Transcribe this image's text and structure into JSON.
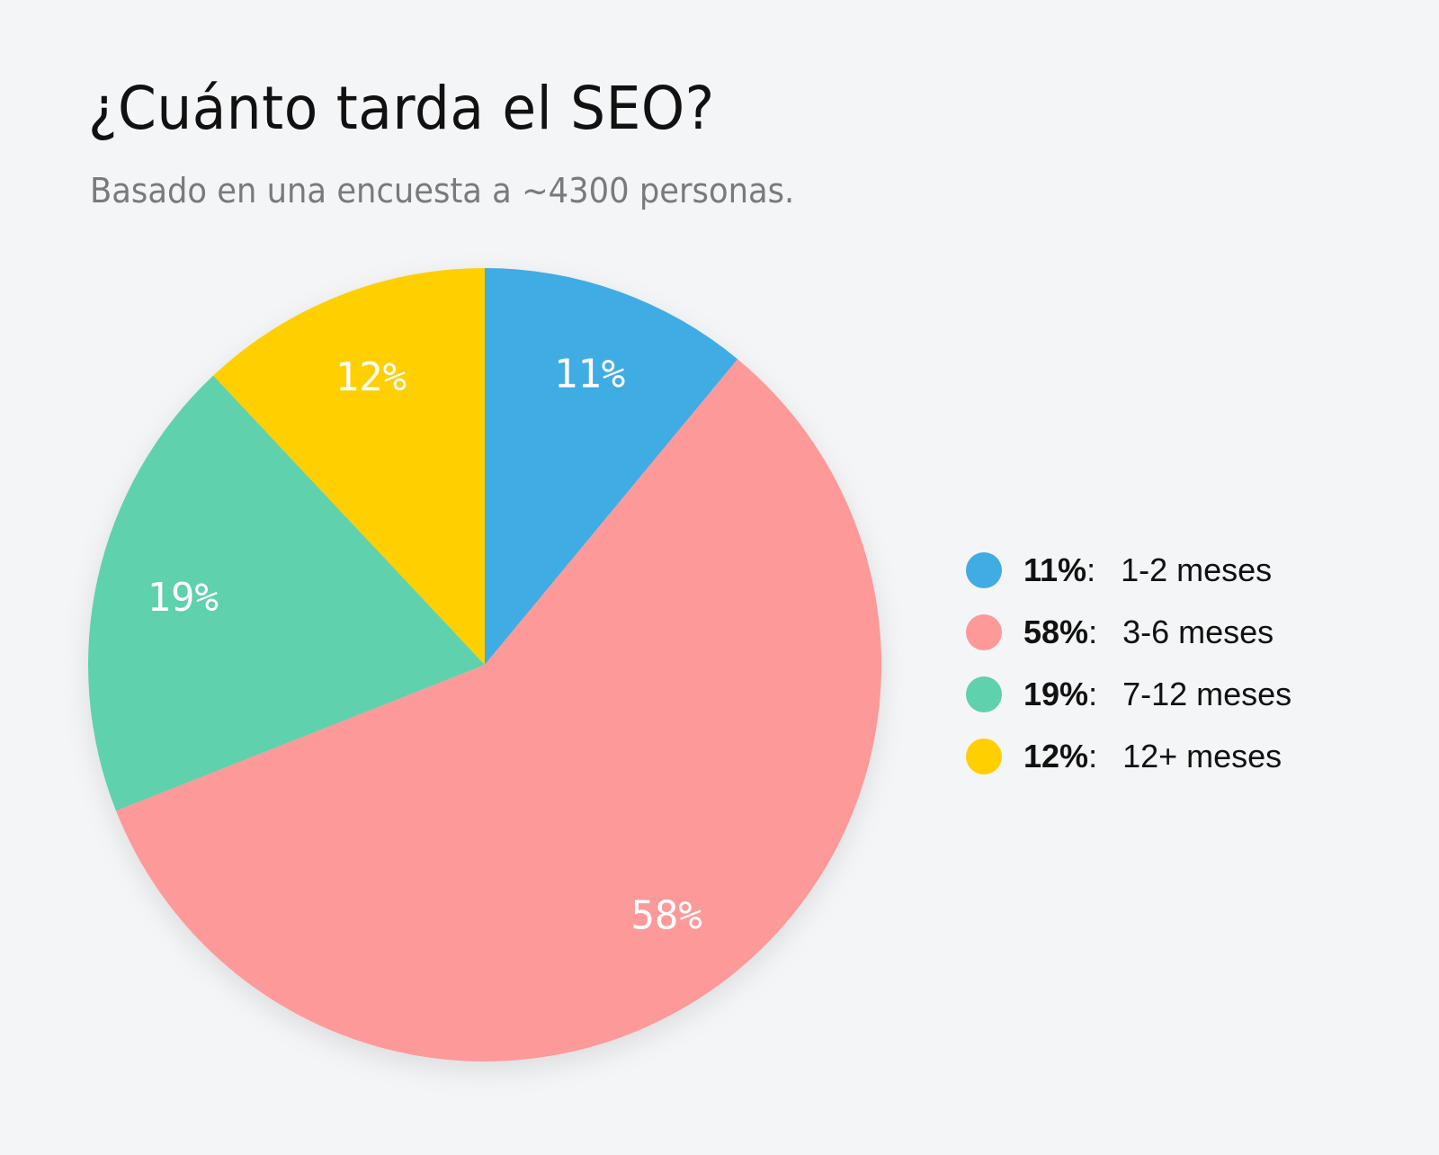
{
  "header": {
    "title": "¿Cuánto tarda el SEO?",
    "subtitle": "Basado en una encuesta a ~4300 personas."
  },
  "legend": {
    "items": [
      {
        "pct": "11%",
        "label": "1-2 meses",
        "color": "#41ACE4"
      },
      {
        "pct": "58%",
        "label": "3-6 meses",
        "color": "#FE9999"
      },
      {
        "pct": "19%",
        "label": "7-12 meses",
        "color": "#5FD1AC"
      },
      {
        "pct": "12%",
        "label": "12+ meses",
        "color": "#FFCF00"
      }
    ]
  },
  "chart_data": {
    "type": "pie",
    "title": "¿Cuánto tarda el SEO?",
    "subtitle": "Basado en una encuesta a ~4300 personas.",
    "categories": [
      "1-2 meses",
      "3-6 meses",
      "7-12 meses",
      "12+ meses"
    ],
    "values": [
      11,
      58,
      19,
      12
    ],
    "labels": [
      "11%",
      "58%",
      "19%",
      "12%"
    ],
    "colors": [
      "#41ACE4",
      "#FE9999",
      "#5FD1AC",
      "#FFCF00"
    ],
    "start_angle": "12 o'clock",
    "direction": "clockwise",
    "legend_position": "right"
  },
  "background": "#F4F5F7"
}
